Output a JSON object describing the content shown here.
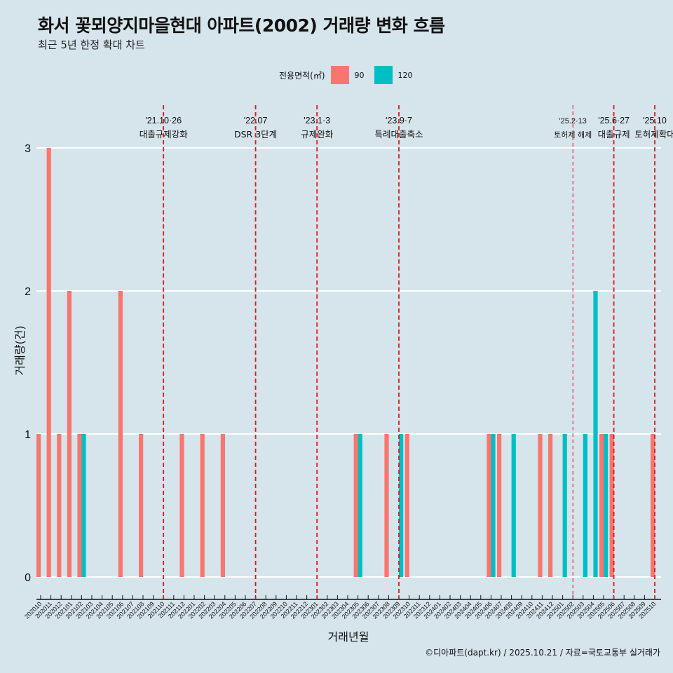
{
  "title": "화서 꽃뫼양지마을현대 아파트(2002) 거래량 변화 흐름",
  "subtitle": "최근 5년 한정 확대 차트",
  "legend": {
    "title": "전용면적(㎡)",
    "items": [
      {
        "label": "90",
        "color": "#f8766d"
      },
      {
        "label": "120",
        "color": "#00bfc4"
      }
    ]
  },
  "caption": "©디아파트(dapt.kr) / 2025.10.21 / 자료=국토교통부 실거래가",
  "chart_data": {
    "type": "bar",
    "xlabel": "거래년월",
    "ylabel": "거래량(건)",
    "ylim": [
      0,
      3
    ],
    "yticks": [
      "0",
      "1",
      "2",
      "3"
    ],
    "grid": true,
    "legend_position": "top",
    "categories": [
      "202010",
      "202011",
      "202012",
      "202101",
      "202102",
      "202103",
      "202104",
      "202105",
      "202106",
      "202107",
      "202108",
      "202109",
      "202110",
      "202111",
      "202112",
      "202201",
      "202202",
      "202203",
      "202204",
      "202205",
      "202206",
      "202207",
      "202208",
      "202209",
      "202210",
      "202211",
      "202212",
      "202301",
      "202302",
      "202303",
      "202304",
      "202305",
      "202306",
      "202307",
      "202308",
      "202309",
      "202310",
      "202311",
      "202312",
      "202401",
      "202402",
      "202403",
      "202404",
      "202405",
      "202406",
      "202407",
      "202408",
      "202409",
      "202410",
      "202411",
      "202412",
      "202501",
      "202502",
      "202503",
      "202504",
      "202505",
      "202506",
      "202507",
      "202508",
      "202509",
      "202510"
    ],
    "series": [
      {
        "name": "90",
        "color": "#f8766d",
        "values": [
          1,
          3,
          1,
          2,
          1,
          0,
          0,
          0,
          2,
          0,
          1,
          0,
          0,
          0,
          1,
          0,
          1,
          0,
          1,
          0,
          0,
          0,
          0,
          0,
          0,
          0,
          0,
          0,
          0,
          0,
          0,
          1,
          0,
          0,
          1,
          0,
          1,
          0,
          0,
          0,
          0,
          0,
          0,
          0,
          1,
          1,
          0,
          0,
          0,
          1,
          1,
          0,
          0,
          0,
          0,
          1,
          1,
          0,
          0,
          0,
          1
        ]
      },
      {
        "name": "120",
        "color": "#00bfc4",
        "values": [
          0,
          0,
          0,
          0,
          1,
          0,
          0,
          0,
          0,
          0,
          0,
          0,
          0,
          0,
          0,
          0,
          0,
          0,
          0,
          0,
          0,
          0,
          0,
          0,
          0,
          0,
          0,
          0,
          0,
          0,
          0,
          1,
          0,
          0,
          0,
          1,
          0,
          0,
          0,
          0,
          0,
          0,
          0,
          0,
          1,
          0,
          1,
          0,
          0,
          0,
          0,
          1,
          0,
          1,
          2,
          1,
          0,
          0,
          0,
          0,
          0
        ]
      }
    ],
    "annotations": [
      {
        "month": "202110",
        "date": "'21.10·26",
        "text": "대출규제강화",
        "style": "bold"
      },
      {
        "month": "202207",
        "date": "'22.07",
        "text": "DSR 3단계",
        "style": "bold"
      },
      {
        "month": "202301",
        "date": "'23.1·3",
        "text": "규제완화",
        "style": "bold"
      },
      {
        "month": "202309",
        "date": "'23.9·7",
        "text": "특례대출축소",
        "style": "bold"
      },
      {
        "month": "202502",
        "date": "'25.2·13",
        "text": "토허제 해제",
        "style": "thin"
      },
      {
        "month": "202506",
        "date": "'25.6·27",
        "text": "대출규제",
        "style": "bold"
      },
      {
        "month": "202510",
        "date": "'25.10",
        "text": "토허제확대",
        "style": "bold"
      }
    ]
  }
}
